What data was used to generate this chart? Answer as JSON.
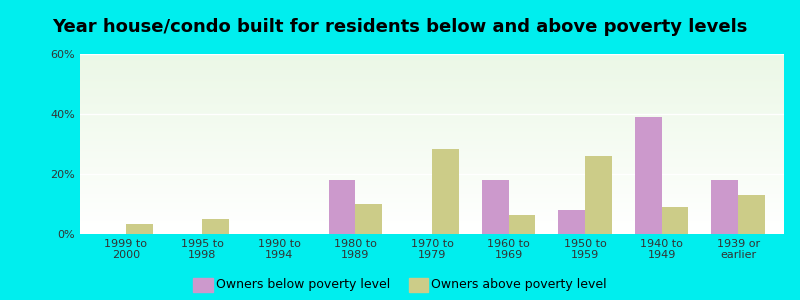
{
  "title": "Year house/condo built for residents below and above poverty levels",
  "categories": [
    "1999 to\n2000",
    "1995 to\n1998",
    "1990 to\n1994",
    "1980 to\n1989",
    "1970 to\n1979",
    "1960 to\n1969",
    "1950 to\n1959",
    "1940 to\n1949",
    "1939 or\nearlier"
  ],
  "below_poverty": [
    0.0,
    0.0,
    0.0,
    18.0,
    0.0,
    18.0,
    8.0,
    39.0,
    18.0
  ],
  "above_poverty": [
    3.5,
    5.0,
    0.0,
    10.0,
    28.5,
    6.5,
    26.0,
    9.0,
    13.0
  ],
  "below_color": "#cc99cc",
  "above_color": "#cccc88",
  "background_color": "#00eeee",
  "ylim": [
    0,
    60
  ],
  "yticks": [
    0,
    20,
    40,
    60
  ],
  "bar_width": 0.35,
  "title_fontsize": 13,
  "tick_fontsize": 8,
  "legend_fontsize": 9
}
